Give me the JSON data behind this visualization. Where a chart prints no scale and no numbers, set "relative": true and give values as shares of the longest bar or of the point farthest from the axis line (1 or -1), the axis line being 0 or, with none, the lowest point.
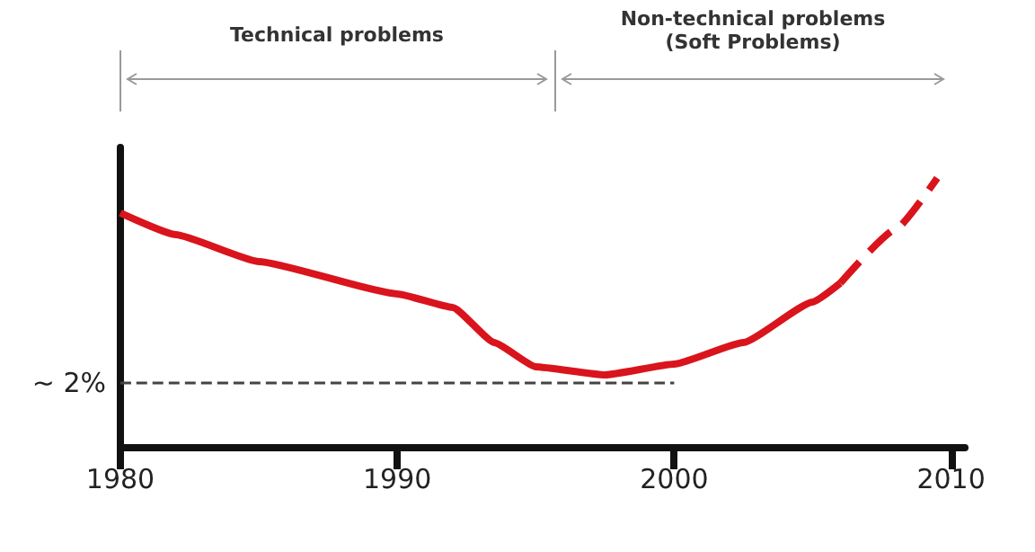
{
  "chart_data": {
    "type": "line",
    "relative": true,
    "xlim": [
      1980,
      2010.5
    ],
    "xticks": [
      1980,
      1990,
      2000,
      2010
    ],
    "grid": false,
    "marker": "none",
    "series": [
      {
        "color": "#d9141c",
        "line_style": "solid",
        "x": [
          1980,
          1982,
          1985,
          1990,
          1992,
          1993.5,
          1995,
          1997.5,
          2000,
          2002.5,
          2005,
          2006
        ],
        "values": [
          0.87,
          0.79,
          0.69,
          0.57,
          0.52,
          0.39,
          0.3,
          0.27,
          0.31,
          0.39,
          0.54,
          0.61
        ]
      },
      {
        "color": "#d9141c",
        "line_style": "dashed",
        "x": [
          2006,
          2008,
          2009.5
        ],
        "values": [
          0.61,
          0.81,
          1.0
        ]
      },
      {
        "color": "#444444",
        "line_style": "dashed",
        "x": [
          1980,
          2000
        ],
        "values": [
          0.24,
          0.24
        ]
      }
    ],
    "annotations": [
      {
        "text": "~ 2%",
        "x": 1980,
        "y": 0.24
      },
      "Technical problems",
      "Non-technical problems\n(Soft Problems)"
    ]
  }
}
